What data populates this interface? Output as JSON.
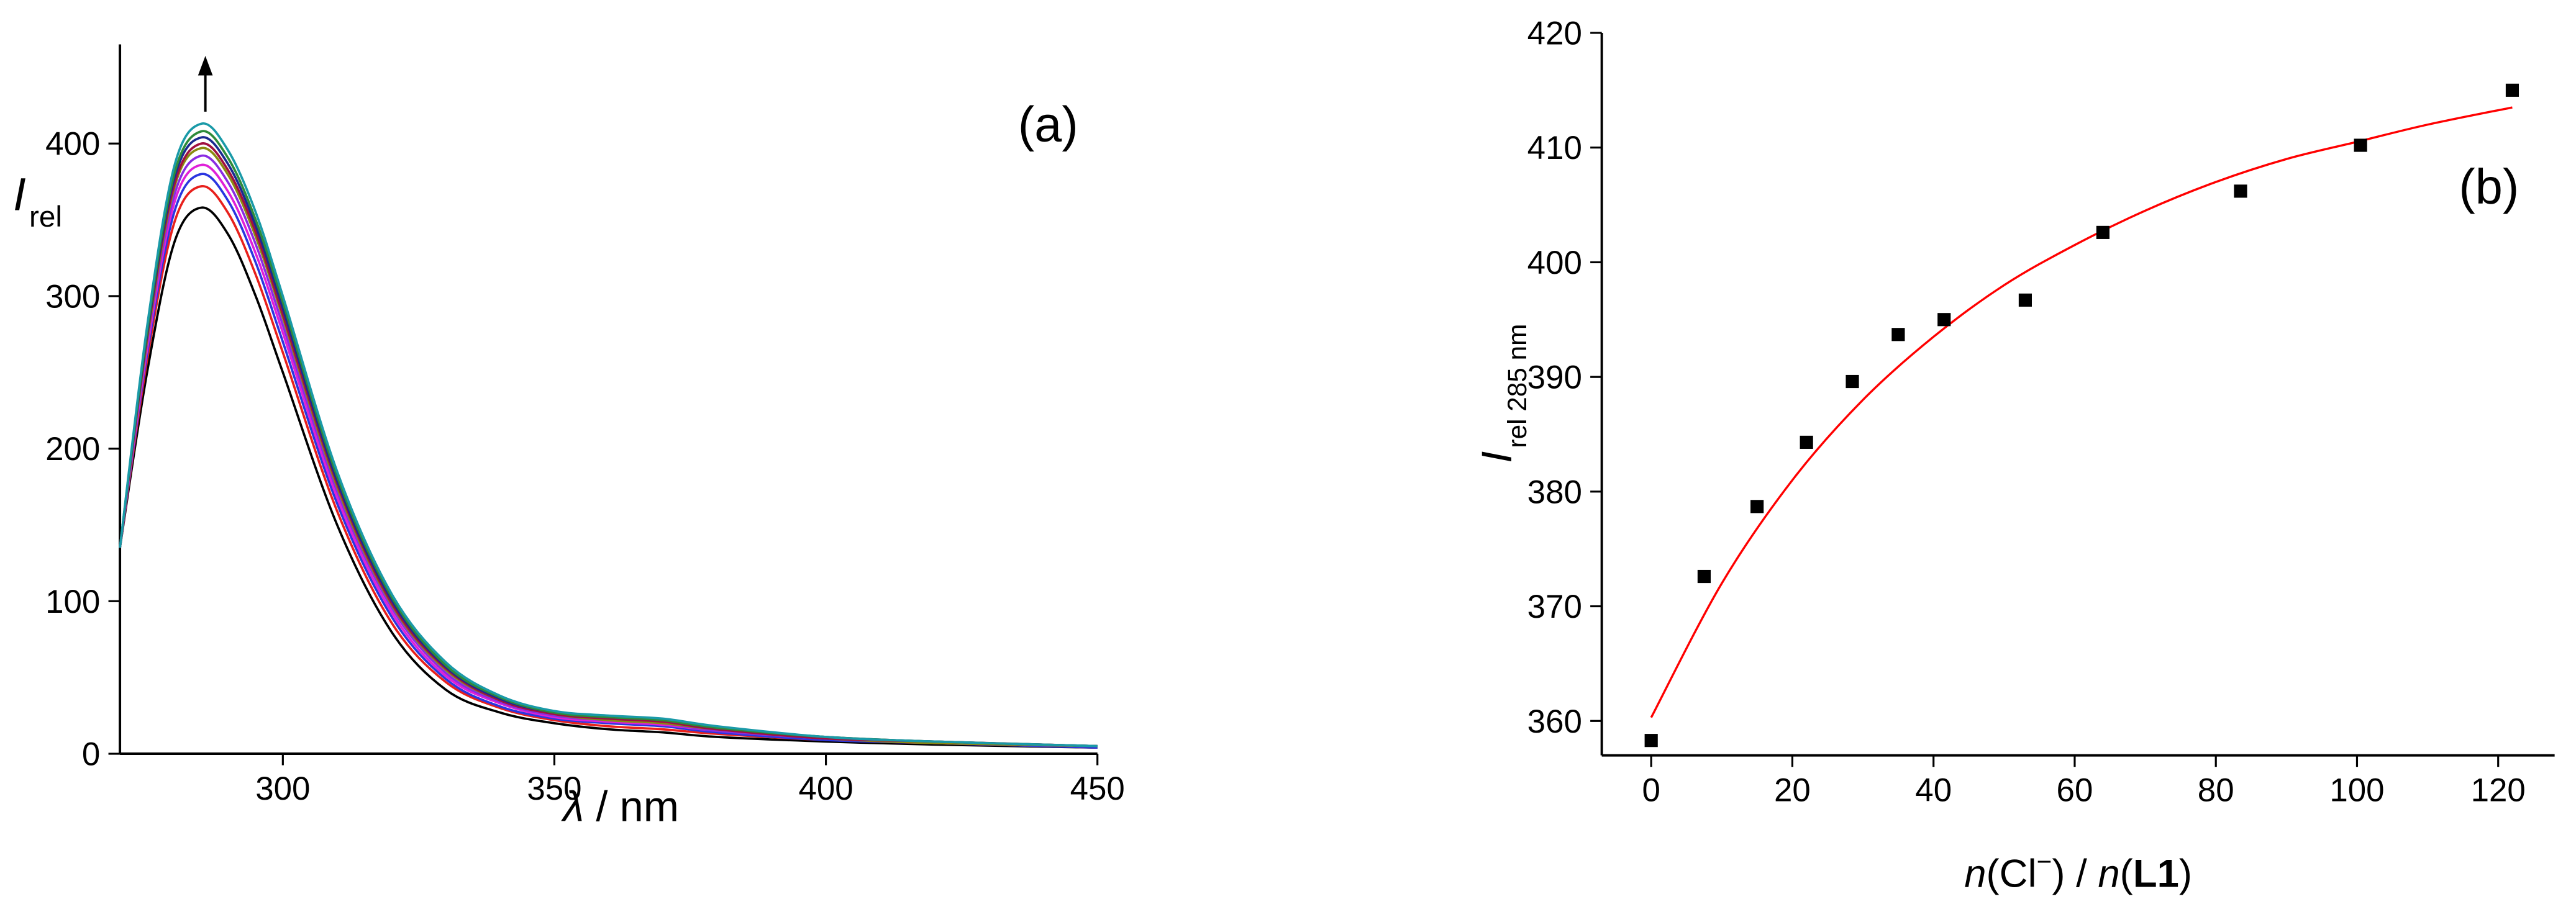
{
  "chart_data": [
    {
      "type": "line",
      "panel": "(a)",
      "ylabel": {
        "main": "I",
        "sub": "rel"
      },
      "xlabel": {
        "symbol": "λ",
        "unit": " / nm"
      },
      "x": [
        270,
        275,
        280,
        285,
        290,
        295,
        300,
        310,
        320,
        330,
        340,
        350,
        360,
        370,
        380,
        400,
        420,
        450
      ],
      "series": [
        {
          "color": "#000000",
          "values": [
            135,
            250,
            335,
            358,
            340,
            300,
            250,
            150,
            80,
            42,
            27,
            20,
            16,
            14,
            11,
            8,
            6,
            4
          ]
        },
        {
          "color": "#e8201c",
          "values": [
            135,
            258,
            348,
            372,
            354,
            314,
            263,
            159,
            86,
            47,
            30,
            22,
            18,
            16,
            13,
            9,
            7,
            4
          ]
        },
        {
          "color": "#2a35e0",
          "values": [
            135,
            262,
            355,
            380,
            362,
            322,
            270,
            164,
            90,
            49,
            31,
            23,
            20,
            18,
            14,
            9,
            7,
            4
          ]
        },
        {
          "color": "#e020d8",
          "values": [
            135,
            265,
            361,
            386,
            368,
            328,
            276,
            168,
            93,
            51,
            33,
            24,
            21,
            19,
            15,
            10,
            7,
            5
          ]
        },
        {
          "color": "#8a2be2",
          "values": [
            135,
            269,
            366,
            392,
            374,
            334,
            281,
            172,
            96,
            53,
            34,
            25,
            22,
            20,
            15,
            10,
            7,
            5
          ]
        },
        {
          "color": "#8a8a10",
          "values": [
            135,
            271,
            371,
            397,
            379,
            339,
            286,
            175,
            98,
            55,
            35,
            26,
            22,
            20,
            16,
            10,
            7,
            5
          ]
        },
        {
          "color": "#a01040",
          "values": [
            135,
            273,
            373,
            400,
            382,
            342,
            288,
            177,
            99,
            56,
            35,
            26,
            23,
            21,
            16,
            10,
            8,
            5
          ]
        },
        {
          "color": "#1a2a90",
          "values": [
            135,
            275,
            377,
            404,
            386,
            346,
            292,
            179,
            101,
            57,
            36,
            27,
            24,
            22,
            17,
            11,
            8,
            5
          ]
        },
        {
          "color": "#2e8b3a",
          "values": [
            135,
            277,
            380,
            408,
            390,
            350,
            296,
            182,
            103,
            58,
            37,
            27,
            24,
            22,
            17,
            11,
            8,
            5
          ]
        },
        {
          "color": "#1a9aa8",
          "values": [
            135,
            280,
            385,
            413,
            395,
            355,
            300,
            185,
            105,
            60,
            38,
            28,
            25,
            23,
            18,
            11,
            8,
            5
          ]
        }
      ],
      "xlim": [
        270,
        450
      ],
      "xticks": [
        300,
        350,
        400,
        450
      ],
      "ylim": [
        0,
        465
      ],
      "yticks": [
        0,
        100,
        200,
        300,
        400
      ]
    },
    {
      "type": "scatter",
      "panel": "(b)",
      "ylabel": {
        "main": "I",
        "sub": "rel 285 nm"
      },
      "xlabel": {
        "n1": "n",
        "p1": "(Cl",
        "sup": "−",
        "p2": ") / ",
        "n2": "n",
        "p3": "(",
        "bold": "L1",
        "p4": ")"
      },
      "x": [
        0,
        7.5,
        15,
        22,
        28.5,
        35,
        41.5,
        53,
        64,
        83.5,
        100.5,
        122
      ],
      "series": [
        {
          "color": "#000000",
          "values": [
            358.3,
            372.6,
            378.7,
            384.3,
            389.6,
            393.7,
            395.0,
            396.7,
            402.6,
            406.2,
            410.2,
            415.0
          ]
        }
      ],
      "fit": {
        "color": "#ff0000",
        "x": [
          0,
          10,
          20,
          30,
          40,
          50,
          60,
          70,
          80,
          90,
          100,
          110,
          122
        ],
        "values": [
          360.3,
          372,
          381,
          388,
          393.5,
          398,
          401.5,
          404.5,
          407,
          409,
          410.5,
          412,
          413.5
        ]
      },
      "xlim": [
        -7,
        128
      ],
      "xticks": [
        0,
        20,
        40,
        60,
        80,
        100,
        120
      ],
      "ylim": [
        357,
        420
      ],
      "yticks": [
        360,
        370,
        380,
        390,
        400,
        410,
        420
      ]
    }
  ]
}
